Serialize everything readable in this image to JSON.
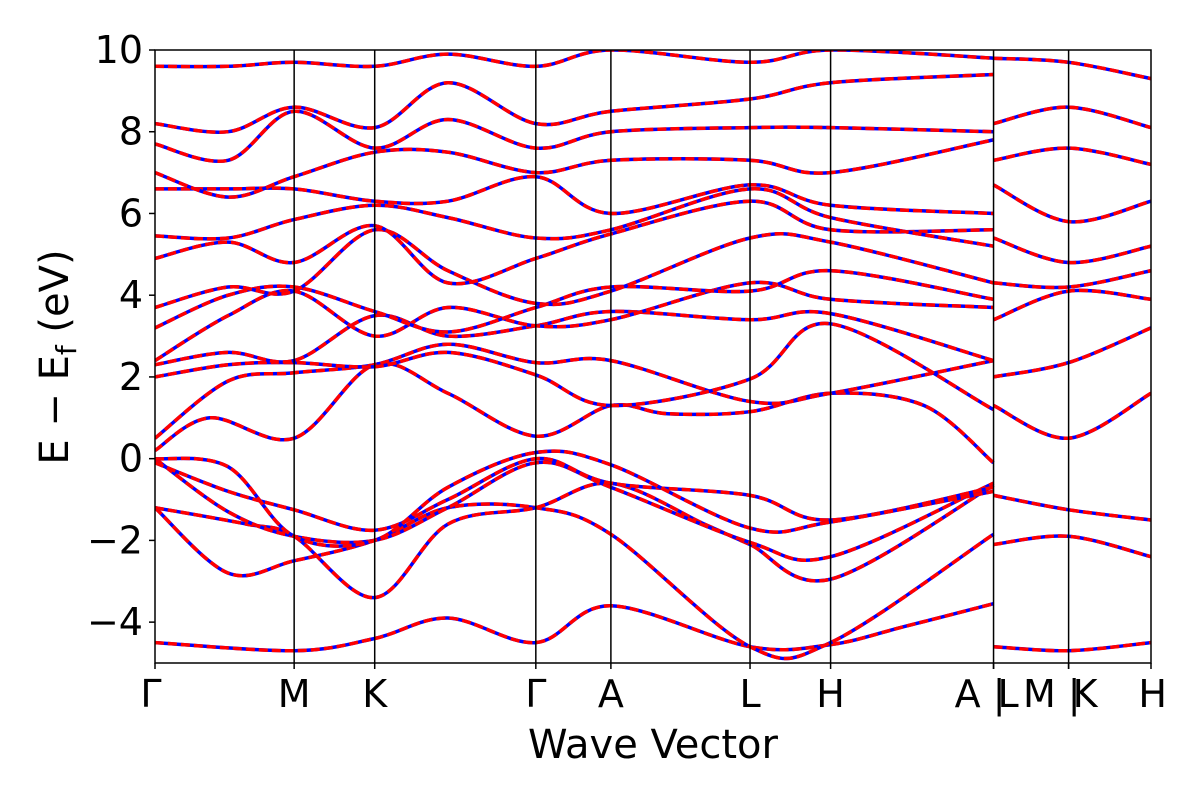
{
  "chart_data": {
    "type": "line",
    "xlabel": "Wave Vector",
    "ylabel": "E − E",
    "ylabel_sub": "f",
    "ylabel_unit": " (eV)",
    "ylim": [
      -5,
      10
    ],
    "yticks": [
      10,
      8,
      6,
      4,
      2,
      0,
      -2,
      -4
    ],
    "ytick_labels": [
      "10",
      "8",
      "6",
      "4",
      "2",
      "0",
      "−2",
      "−4"
    ],
    "xlim": [
      0,
      5.44
    ],
    "kpoints": [
      {
        "label": "Γ",
        "x": 0.0
      },
      {
        "label": "M",
        "x": 0.76
      },
      {
        "label": "K",
        "x": 1.2
      },
      {
        "label": "Γ",
        "x": 2.08
      },
      {
        "label": "A",
        "x": 2.49
      },
      {
        "label": "L",
        "x": 3.25
      },
      {
        "label": "H",
        "x": 3.69
      },
      {
        "label": "A |",
        "x": 4.58
      },
      {
        "label": "L",
        "x": 4.58
      },
      {
        "label": "M |",
        "x": 4.99
      },
      {
        "label": "K",
        "x": 4.99
      },
      {
        "label": "H",
        "x": 5.44
      }
    ],
    "colors": {
      "series_a": "#0000ff",
      "series_b": "#ff0000",
      "vlines": "#000000"
    },
    "bands": [
      {
        "x": [
          0,
          0.76,
          1.2,
          1.6,
          2.08,
          2.49,
          3.25,
          3.69,
          4.1,
          4.58
        ],
        "y": [
          -4.5,
          -4.7,
          -4.4,
          -3.9,
          -4.5,
          -3.6,
          -4.6,
          -4.55,
          -4.1,
          -3.55
        ]
      },
      {
        "x": [
          0,
          0.4,
          0.76,
          1.2,
          1.6,
          2.08,
          2.49,
          3.25,
          3.69,
          4.58
        ],
        "y": [
          -1.2,
          -2.8,
          -2.5,
          -2.0,
          -1.2,
          -1.2,
          -1.85,
          -4.6,
          -4.5,
          -1.85
        ]
      },
      {
        "x": [
          0,
          0.5,
          0.76,
          1.2,
          1.6,
          2.08,
          2.49,
          3.0,
          3.25,
          3.69,
          4.58
        ],
        "y": [
          -1.2,
          -1.6,
          -1.9,
          -3.4,
          -1.6,
          -1.2,
          -0.6,
          -1.6,
          -2.1,
          -2.95,
          -0.65
        ]
      },
      {
        "x": [
          0,
          0.4,
          0.76,
          1.2,
          1.6,
          2.08,
          2.49,
          3.25,
          3.69,
          4.58
        ],
        "y": [
          0.0,
          -1.3,
          -1.9,
          -2.0,
          -1.2,
          -0.1,
          -0.7,
          -2.05,
          -2.4,
          -0.6
        ]
      },
      {
        "x": [
          0,
          0.4,
          0.76,
          1.2,
          1.6,
          2.08,
          2.49,
          3.25,
          3.69,
          4.58
        ],
        "y": [
          -0.1,
          -0.8,
          -1.25,
          -1.75,
          -1.0,
          0.0,
          -0.6,
          -0.9,
          -1.5,
          -0.7
        ]
      },
      {
        "x": [
          0,
          0.4,
          0.76,
          1.2,
          1.6,
          2.08,
          2.49,
          3.25,
          3.69,
          4.58
        ],
        "y": [
          0.0,
          -0.2,
          -1.9,
          -2.0,
          -0.7,
          0.15,
          -0.15,
          -1.7,
          -1.55,
          -0.8
        ]
      },
      {
        "x": [
          0,
          0.3,
          0.76,
          1.2,
          1.6,
          2.08,
          2.49,
          2.8,
          3.25,
          3.69,
          4.2,
          4.58
        ],
        "y": [
          0.2,
          1.0,
          0.5,
          2.3,
          1.6,
          0.55,
          1.3,
          1.1,
          1.15,
          1.6,
          1.3,
          -0.1
        ]
      },
      {
        "x": [
          0,
          0.4,
          0.76,
          1.2,
          1.6,
          2.08,
          2.49,
          3.25,
          3.69,
          4.58
        ],
        "y": [
          0.5,
          1.9,
          2.1,
          2.3,
          2.8,
          2.35,
          2.4,
          1.4,
          1.6,
          2.4
        ]
      },
      {
        "x": [
          0,
          0.4,
          0.76,
          1.2,
          1.6,
          2.08,
          2.49,
          3.25,
          3.69,
          4.58
        ],
        "y": [
          2.0,
          2.3,
          2.35,
          2.25,
          2.6,
          2.05,
          1.3,
          1.95,
          3.3,
          1.2
        ]
      },
      {
        "x": [
          0,
          0.4,
          0.76,
          1.2,
          1.6,
          2.08,
          2.49,
          3.25,
          3.69,
          4.58
        ],
        "y": [
          2.3,
          2.6,
          2.4,
          3.5,
          3.0,
          3.25,
          3.6,
          3.4,
          3.55,
          2.4
        ]
      },
      {
        "x": [
          0,
          0.4,
          0.76,
          1.2,
          1.6,
          2.08,
          2.49,
          3.25,
          3.69,
          4.58
        ],
        "y": [
          2.4,
          3.5,
          4.1,
          3.0,
          3.7,
          3.25,
          3.4,
          4.3,
          3.9,
          3.7
        ]
      },
      {
        "x": [
          0,
          0.4,
          0.76,
          1.2,
          1.6,
          2.08,
          2.49,
          3.25,
          3.69,
          4.58
        ],
        "y": [
          3.2,
          4.0,
          4.2,
          3.6,
          3.1,
          3.7,
          4.2,
          4.1,
          4.6,
          3.9
        ]
      },
      {
        "x": [
          0,
          0.4,
          0.76,
          1.2,
          1.6,
          2.08,
          2.49,
          3.25,
          3.69,
          4.58
        ],
        "y": [
          3.7,
          4.2,
          4.1,
          5.6,
          4.6,
          3.8,
          4.1,
          5.4,
          5.3,
          4.3
        ]
      },
      {
        "x": [
          0,
          0.4,
          0.76,
          1.2,
          1.6,
          2.08,
          2.49,
          3.25,
          3.69,
          4.58
        ],
        "y": [
          4.9,
          5.3,
          4.8,
          5.7,
          4.3,
          4.9,
          5.5,
          6.3,
          5.6,
          5.6
        ]
      },
      {
        "x": [
          0,
          0.4,
          0.76,
          1.2,
          1.6,
          2.08,
          2.49,
          3.25,
          3.69,
          4.58
        ],
        "y": [
          5.45,
          5.4,
          5.85,
          6.2,
          5.9,
          5.4,
          5.6,
          6.6,
          5.9,
          5.2
        ]
      },
      {
        "x": [
          0,
          0.4,
          0.76,
          1.2,
          1.6,
          2.08,
          2.49,
          3.25,
          3.69,
          4.58
        ],
        "y": [
          6.6,
          6.6,
          6.6,
          6.3,
          6.3,
          6.9,
          6.0,
          6.7,
          6.2,
          6.0
        ]
      },
      {
        "x": [
          0,
          0.4,
          0.76,
          1.2,
          1.6,
          2.08,
          2.49,
          3.25,
          3.69,
          4.58
        ],
        "y": [
          7.0,
          6.4,
          6.9,
          7.5,
          7.5,
          7.0,
          7.3,
          7.3,
          7.0,
          7.8
        ]
      },
      {
        "x": [
          0,
          0.4,
          0.76,
          1.2,
          1.6,
          2.08,
          2.49,
          3.25,
          3.69,
          4.58
        ],
        "y": [
          7.7,
          7.3,
          8.5,
          7.6,
          8.3,
          7.6,
          8.0,
          8.1,
          8.1,
          8.0
        ]
      },
      {
        "x": [
          0,
          0.4,
          0.76,
          1.2,
          1.6,
          2.08,
          2.49,
          3.25,
          3.69,
          4.58
        ],
        "y": [
          8.2,
          8.0,
          8.6,
          8.1,
          9.2,
          8.2,
          8.5,
          8.8,
          9.2,
          9.4
        ]
      },
      {
        "x": [
          0,
          0.4,
          0.76,
          1.2,
          1.6,
          2.08,
          2.49,
          3.25,
          3.69,
          4.58
        ],
        "y": [
          9.6,
          9.6,
          9.7,
          9.6,
          9.9,
          9.6,
          10.0,
          9.7,
          10.0,
          9.8
        ]
      },
      {
        "x": [
          4.58,
          4.99,
          5.44
        ],
        "y": [
          -4.6,
          -4.7,
          -4.5
        ]
      },
      {
        "x": [
          4.58,
          4.99,
          5.44
        ],
        "y": [
          -2.1,
          -1.9,
          -2.4
        ]
      },
      {
        "x": [
          4.58,
          4.99,
          5.44
        ],
        "y": [
          -0.9,
          -1.25,
          -1.5
        ]
      },
      {
        "x": [
          4.58,
          4.99,
          5.44
        ],
        "y": [
          1.3,
          0.5,
          1.6
        ]
      },
      {
        "x": [
          4.58,
          4.99,
          5.44
        ],
        "y": [
          2.0,
          2.35,
          3.2
        ]
      },
      {
        "x": [
          4.58,
          4.99,
          5.44
        ],
        "y": [
          3.4,
          4.1,
          3.9
        ]
      },
      {
        "x": [
          4.58,
          4.99,
          5.44
        ],
        "y": [
          4.3,
          4.2,
          4.6
        ]
      },
      {
        "x": [
          4.58,
          4.99,
          5.44
        ],
        "y": [
          5.4,
          4.8,
          5.2
        ]
      },
      {
        "x": [
          4.58,
          4.99,
          5.44
        ],
        "y": [
          6.7,
          5.8,
          6.3
        ]
      },
      {
        "x": [
          4.58,
          4.99,
          5.44
        ],
        "y": [
          7.3,
          7.6,
          7.2
        ]
      },
      {
        "x": [
          4.58,
          4.99,
          5.44
        ],
        "y": [
          8.2,
          8.6,
          8.1
        ]
      },
      {
        "x": [
          4.58,
          4.99,
          5.44
        ],
        "y": [
          9.8,
          9.7,
          9.3
        ]
      }
    ]
  }
}
